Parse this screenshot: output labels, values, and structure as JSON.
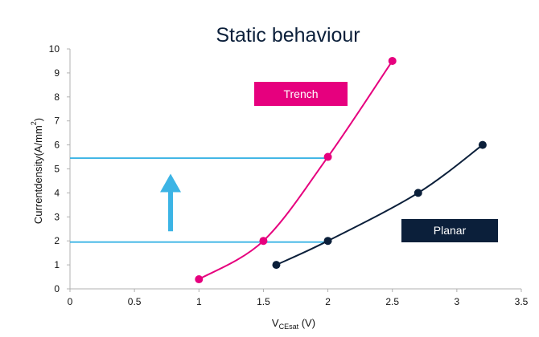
{
  "chart_data": {
    "type": "scatter",
    "title": "Static behaviour",
    "xlabel": {
      "main": "V",
      "sub": "CEsat",
      "unit": " (V)"
    },
    "ylabel": {
      "main": "Currentdensity(A/mm",
      "exp": "2",
      "close": ")"
    },
    "xlim": [
      0,
      3.5
    ],
    "ylim": [
      0,
      10
    ],
    "x_ticks": [
      "0",
      "0.5",
      "1",
      "1.5",
      "2",
      "2.5",
      "3",
      "3.5"
    ],
    "y_ticks": [
      "0",
      "1",
      "2",
      "3",
      "4",
      "5",
      "6",
      "7",
      "8",
      "9",
      "10"
    ],
    "grid": false,
    "series": [
      {
        "name": "Trench",
        "color": "#e6007e",
        "points": [
          {
            "x": 1.0,
            "y": 0.4
          },
          {
            "x": 1.5,
            "y": 2.0
          },
          {
            "x": 2.0,
            "y": 5.5
          },
          {
            "x": 2.5,
            "y": 9.5
          }
        ]
      },
      {
        "name": "Planar",
        "color": "#0b1f3a",
        "points": [
          {
            "x": 1.6,
            "y": 1.0
          },
          {
            "x": 2.0,
            "y": 2.0
          },
          {
            "x": 2.7,
            "y": 4.0
          },
          {
            "x": 3.2,
            "y": 6.0
          }
        ]
      }
    ],
    "reference_lines": [
      {
        "y": 5.45,
        "x_end": 2.0,
        "color": "#3cb4e5"
      },
      {
        "y": 1.95,
        "x_end": 2.0,
        "color": "#3cb4e5"
      }
    ],
    "arrow": {
      "x": 0.78,
      "y_from": 2.4,
      "y_to": 4.8,
      "color": "#3cb4e5"
    }
  }
}
